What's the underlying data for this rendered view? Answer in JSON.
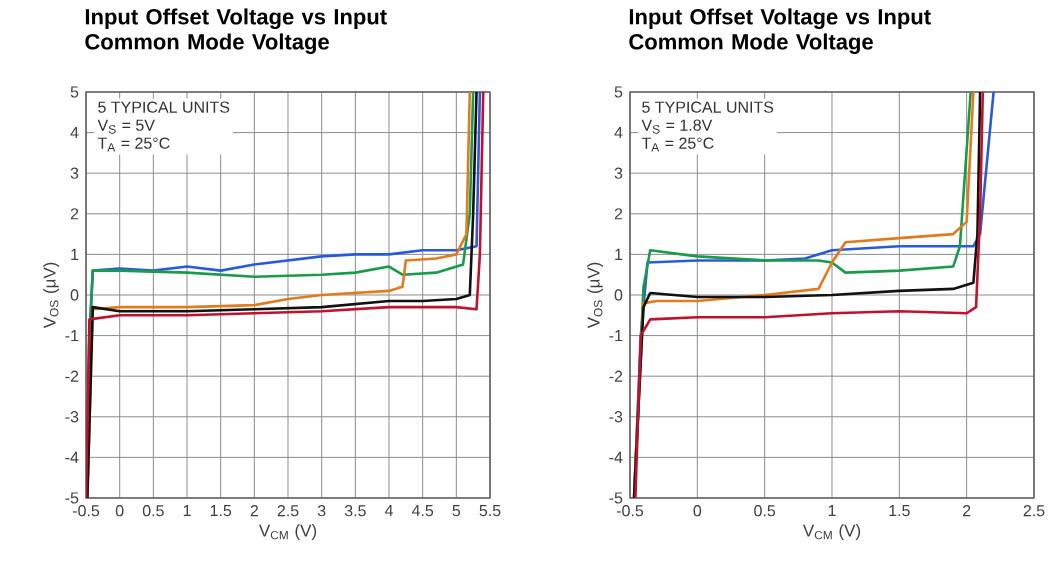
{
  "chart_data": [
    {
      "type": "line",
      "title": "Input Offset Voltage vs Input Common Mode Voltage",
      "xlabel": "V$_{CM}$ (V)",
      "ylabel": "V$_{OS}$ (μV)",
      "annotations": [
        "5 TYPICAL UNITS",
        "V$_{S}$ = 5V",
        "T$_{A}$ = 25°C"
      ],
      "xlim": [
        -0.5,
        5.5
      ],
      "ylim": [
        -5,
        5
      ],
      "xticks": [
        -0.5,
        0,
        0.5,
        1,
        1.5,
        2,
        2.5,
        3,
        3.5,
        4,
        4.5,
        5,
        5.5
      ],
      "yticks": [
        -5,
        -4,
        -3,
        -2,
        -1,
        0,
        1,
        2,
        3,
        4,
        5
      ],
      "grid": true,
      "marker": "none",
      "line_style": "solid",
      "series": [
        {
          "color": "#2a5bd7",
          "x": [
            -0.5,
            -0.45,
            -0.4,
            0,
            0.5,
            1,
            1.5,
            2,
            2.5,
            3,
            3.5,
            4,
            4.5,
            5,
            5.3,
            5.35
          ],
          "values": [
            -5,
            -1,
            0.6,
            0.65,
            0.6,
            0.7,
            0.6,
            0.75,
            0.85,
            0.95,
            1.0,
            1.0,
            1.1,
            1.1,
            1.2,
            5
          ]
        },
        {
          "color": "#1a9a4a",
          "x": [
            -0.48,
            -0.43,
            -0.4,
            0,
            1,
            2,
            3,
            3.5,
            4,
            4.2,
            4.7,
            5.1,
            5.2,
            5.25
          ],
          "values": [
            -5,
            -0.5,
            0.6,
            0.6,
            0.55,
            0.45,
            0.5,
            0.55,
            0.7,
            0.5,
            0.55,
            0.75,
            2,
            5
          ]
        },
        {
          "color": "#e07b1f",
          "x": [
            -0.48,
            -0.4,
            0,
            1,
            2,
            2.5,
            3,
            3.5,
            4,
            4.2,
            4.25,
            4.7,
            5,
            5.15,
            5.2
          ],
          "values": [
            -5,
            -0.35,
            -0.3,
            -0.3,
            -0.25,
            -0.1,
            0,
            0.05,
            0.1,
            0.2,
            0.85,
            0.9,
            1.0,
            1.5,
            5
          ]
        },
        {
          "color": "#111111",
          "x": [
            -0.48,
            -0.4,
            0,
            1,
            2,
            3,
            4,
            4.5,
            5,
            5.2,
            5.25,
            5.3
          ],
          "values": [
            -5,
            -0.3,
            -0.4,
            -0.4,
            -0.35,
            -0.3,
            -0.15,
            -0.15,
            -0.1,
            0,
            2,
            5
          ]
        },
        {
          "color": "#c0122e",
          "x": [
            -0.5,
            -0.45,
            0,
            1,
            2,
            3,
            4,
            4.5,
            5,
            5.3,
            5.35,
            5.4
          ],
          "values": [
            -5,
            -0.6,
            -0.5,
            -0.5,
            -0.45,
            -0.4,
            -0.3,
            -0.3,
            -0.3,
            -0.35,
            1,
            5
          ]
        }
      ]
    },
    {
      "type": "line",
      "title": "Input Offset Voltage vs Input Common Mode Voltage",
      "xlabel": "V$_{CM}$ (V)",
      "ylabel": "V$_{OS}$ (μV)",
      "annotations": [
        "5 TYPICAL UNITS",
        "V$_{S}$ = 1.8V",
        "T$_{A}$ = 25°C"
      ],
      "xlim": [
        -0.5,
        2.5
      ],
      "ylim": [
        -5,
        5
      ],
      "xticks": [
        -0.5,
        0,
        0.5,
        1,
        1.5,
        2,
        2.5
      ],
      "yticks": [
        -5,
        -4,
        -3,
        -2,
        -1,
        0,
        1,
        2,
        3,
        4,
        5
      ],
      "grid": true,
      "marker": "none",
      "line_style": "solid",
      "series": [
        {
          "color": "#2a5bd7",
          "x": [
            -0.47,
            -0.42,
            -0.37,
            0,
            0.5,
            0.8,
            1,
            1.5,
            1.9,
            2.05,
            2.1,
            2.2
          ],
          "values": [
            -5,
            -1,
            0.8,
            0.85,
            0.85,
            0.9,
            1.1,
            1.2,
            1.2,
            1.2,
            1.5,
            5
          ]
        },
        {
          "color": "#1a9a4a",
          "x": [
            -0.47,
            -0.4,
            -0.35,
            0,
            0.5,
            0.9,
            1.0,
            1.1,
            1.5,
            1.9,
            1.95,
            2.03
          ],
          "values": [
            -5,
            0.2,
            1.1,
            0.95,
            0.85,
            0.85,
            0.8,
            0.55,
            0.6,
            0.7,
            1.2,
            5
          ]
        },
        {
          "color": "#e07b1f",
          "x": [
            -0.47,
            -0.4,
            -0.3,
            0,
            0.5,
            0.9,
            1.0,
            1.1,
            1.5,
            1.9,
            2.0,
            2.05
          ],
          "values": [
            -5,
            -0.2,
            -0.15,
            -0.15,
            0.0,
            0.15,
            0.8,
            1.3,
            1.4,
            1.5,
            1.8,
            5
          ]
        },
        {
          "color": "#111111",
          "x": [
            -0.47,
            -0.4,
            -0.35,
            0,
            0.5,
            1,
            1.5,
            1.9,
            2.05,
            2.08,
            2.1
          ],
          "values": [
            -5,
            -0.3,
            0.05,
            -0.05,
            -0.05,
            0.0,
            0.1,
            0.15,
            0.3,
            1.5,
            5
          ]
        },
        {
          "color": "#c0122e",
          "x": [
            -0.46,
            -0.42,
            -0.35,
            0,
            0.5,
            1,
            1.5,
            2.0,
            2.07,
            2.1,
            2.12
          ],
          "values": [
            -5,
            -1,
            -0.6,
            -0.55,
            -0.55,
            -0.45,
            -0.4,
            -0.45,
            -0.3,
            2,
            5
          ]
        }
      ]
    }
  ]
}
